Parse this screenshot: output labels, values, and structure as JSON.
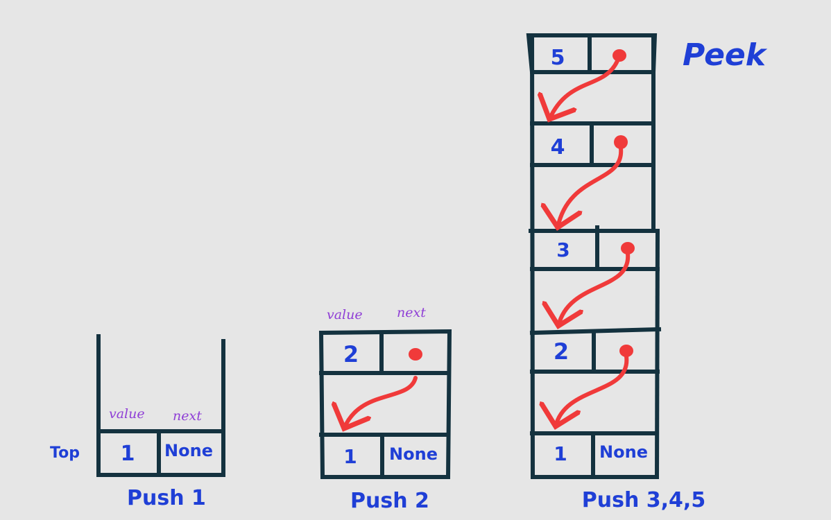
{
  "diagram": {
    "field_labels": {
      "value": "value",
      "next": "next"
    },
    "top_label": "Top",
    "peek_label": "Peek",
    "stacks": [
      {
        "caption": "Push 1",
        "nodes": [
          {
            "value": "1",
            "next": "None"
          }
        ]
      },
      {
        "caption": "Push 2",
        "nodes": [
          {
            "value": "2"
          },
          {
            "value": "1",
            "next": "None"
          }
        ]
      },
      {
        "caption": "Push 3,4,5",
        "nodes": [
          {
            "value": "5"
          },
          {
            "value": "4"
          },
          {
            "value": "3"
          },
          {
            "value": "2"
          },
          {
            "value": "1",
            "next": "None"
          }
        ]
      }
    ]
  },
  "colors": {
    "frame": "#14323f",
    "text": "#1f3fd6",
    "label": "#8f3fd6",
    "arrow": "#f03a3a",
    "background": "#e6e6e6"
  }
}
